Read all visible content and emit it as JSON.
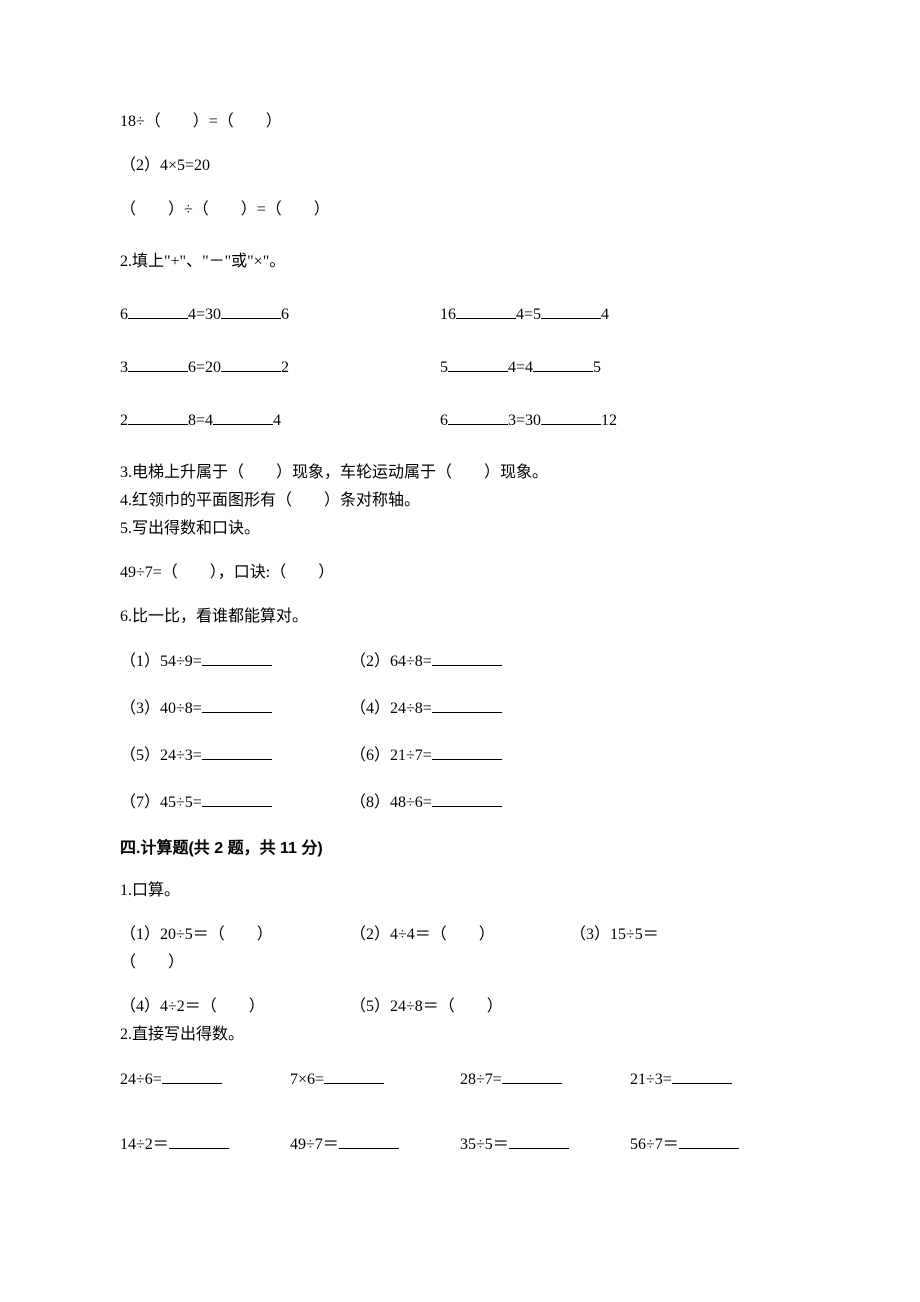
{
  "line1": "18÷（　　）=（　　）",
  "line2": "（2）4×5=20",
  "line3": "（　　）÷（　　）=（　　）",
  "q2title": "2.填上\"+\"、\"－\"或\"×\"。",
  "q2": {
    "r1a": [
      "6",
      "4=30",
      "6"
    ],
    "r1b": [
      "16",
      "4=5",
      "4"
    ],
    "r2a": [
      "3",
      "6=20",
      "2"
    ],
    "r2b": [
      "5",
      "4=4",
      "5"
    ],
    "r3a": [
      "2",
      "8=4",
      "4"
    ],
    "r3b": [
      "6",
      "3=30",
      "12"
    ]
  },
  "q3": "3.电梯上升属于（　　）现象，车轮运动属于（　　）现象。",
  "q4": "4.红领巾的平面图形有（　　）条对称轴。",
  "q5a": "5.写出得数和口诀。",
  "q5b": "49÷7=（　　），口诀:（　　）",
  "q6title": "6.比一比，看谁都能算对。",
  "q6": {
    "p1": "（1）54÷9=",
    "p2": "（2）64÷8=",
    "p3": "（3）40÷8=",
    "p4": "（4）24÷8=",
    "p5": "（5）24÷3=",
    "p6": "（6）21÷7=",
    "p7": "（7）45÷5=",
    "p8": "（8）48÷6="
  },
  "sec4": "四.计算题(共 2 题，共 11 分)",
  "calc1title": "1.口算。",
  "calc1": {
    "p1": "（1）20÷5＝（　　）",
    "p2": "（2）4÷4＝（　　）",
    "p3": "（3）15÷5＝",
    "p3b": "（　　）",
    "p4": "（4）4÷2＝（　　）",
    "p5": "（5）24÷8＝（　　）"
  },
  "calc2title": "2.直接写出得数。",
  "calc2": {
    "r1": [
      "24÷6=",
      "7×6=",
      "28÷7=",
      "21÷3="
    ],
    "r2": [
      "14÷2＝",
      "49÷7＝",
      "35÷5＝",
      "56÷7＝"
    ]
  }
}
